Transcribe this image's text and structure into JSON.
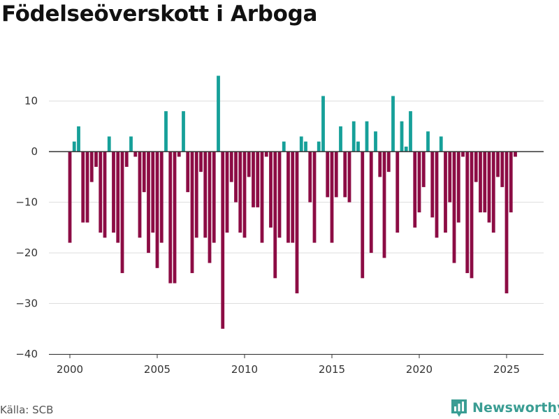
{
  "title": "Födelseöverskott i Arboga",
  "source": "Källa: SCB",
  "brand": {
    "name": "Newsworthy",
    "logo_icon": "newsworthy-bar-chart-icon"
  },
  "colors": {
    "positive": "#16a099",
    "negative": "#8c0c44",
    "grid": "#dddddd",
    "zero_line": "#333333"
  },
  "chart_data": {
    "type": "bar",
    "title": "Födelseöverskott i Arboga",
    "xlabel": "",
    "ylabel": "",
    "frequency": "quarterly",
    "start": "2000-Q1",
    "end": "2025-Q3",
    "values": [
      -18,
      2,
      5,
      -14,
      -14,
      -6,
      -3,
      -16,
      -17,
      3,
      -16,
      -18,
      -24,
      -3,
      3,
      -1,
      -17,
      -8,
      -20,
      -16,
      -23,
      -18,
      8,
      -26,
      -26,
      -1,
      8,
      -8,
      -24,
      -17,
      -4,
      -17,
      -22,
      -18,
      15,
      -35,
      -16,
      -6,
      -10,
      -16,
      -17,
      -5,
      -11,
      -11,
      -18,
      -1,
      -15,
      -25,
      -17,
      2,
      -18,
      -18,
      -28,
      3,
      2,
      -10,
      -18,
      2,
      11,
      -9,
      -18,
      -9,
      5,
      -9,
      -10,
      6,
      2,
      -25,
      6,
      -20,
      4,
      -5,
      -21,
      -4,
      11,
      -16,
      6,
      1,
      8,
      -15,
      -12,
      -7,
      4,
      -13,
      -17,
      3,
      -16,
      -10,
      -22,
      -14,
      -1,
      -24,
      -25,
      -6,
      -12,
      -12,
      -14,
      -16,
      -5,
      -7,
      -28,
      -12,
      -1
    ],
    "ylim": [
      -40,
      17
    ],
    "yticks": [
      -40,
      -30,
      -20,
      -10,
      0,
      10
    ],
    "ytick_labels": [
      "−40",
      "−30",
      "−20",
      "−10",
      "0",
      "10"
    ],
    "xticks": [
      2000,
      2005,
      2010,
      2015,
      2020,
      2025
    ],
    "grid": true,
    "legend": "none"
  }
}
